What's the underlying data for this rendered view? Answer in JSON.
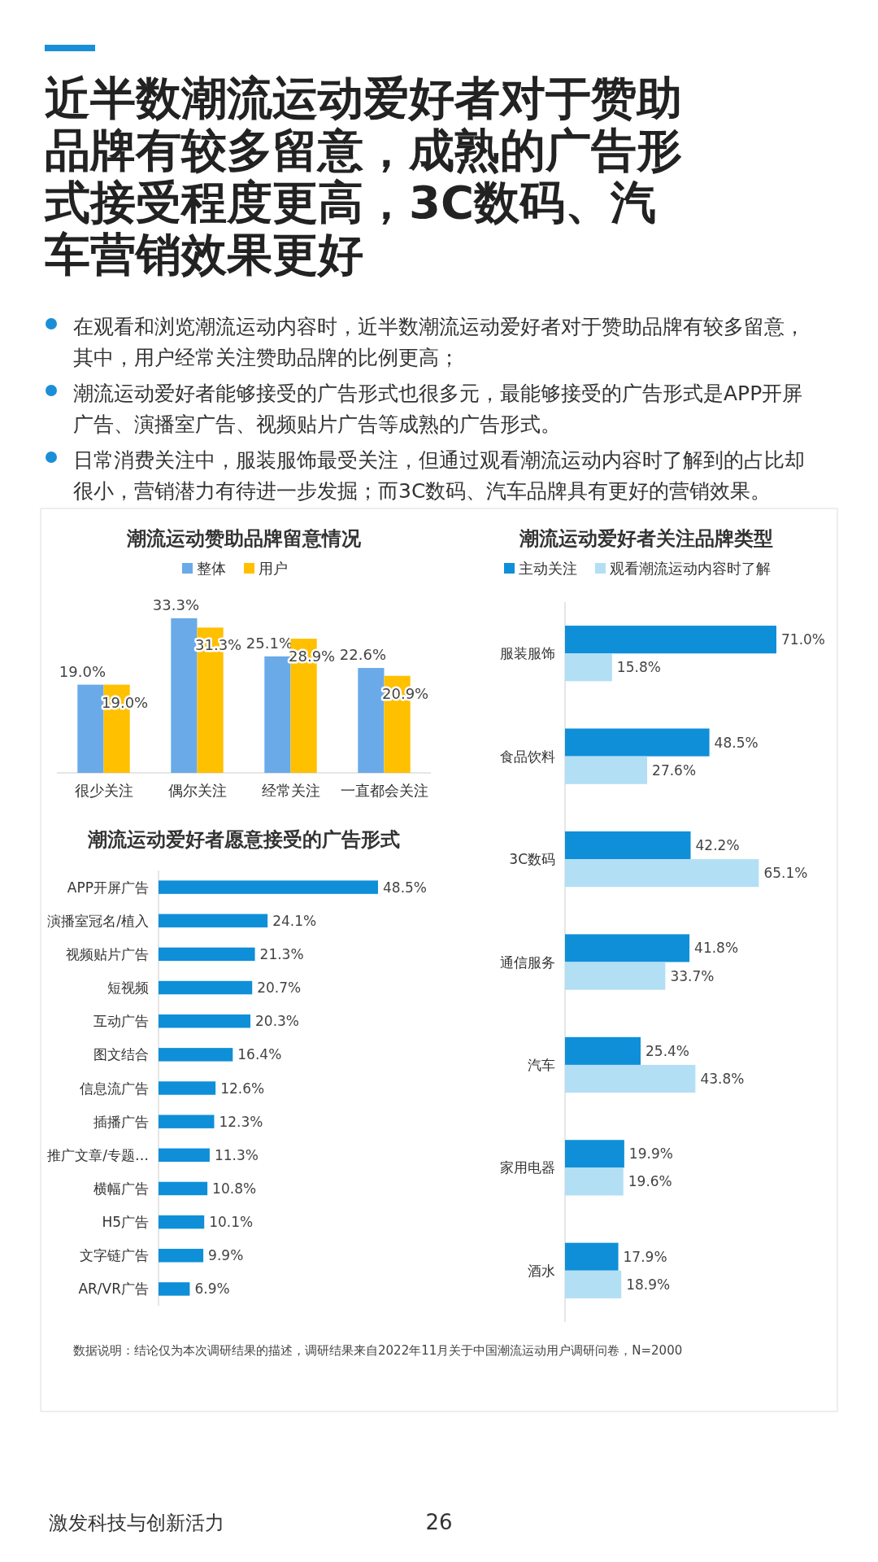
{
  "chart_data": [
    {
      "type": "other",
      "title": "近半数潮流运动爱好者对于赞助品牌有较多留意，成熟的广告形式接受程度更高，3C数码、汽车营销效果更好",
      "annotations": [
        "在观看和浏览潮流运动内容时，近半数潮流运动爱好者对于赞助品牌有较多留意，其中，用户经常关注赞助品牌的比例更高；",
        "潮流运动爱好者能够接受的广告形式也很多元，最能够接受的广告形式是APP开屏广告、演播室广告、视频贴片广告等成熟的广告形式。",
        "日常消费关注中，服装服饰最受关注，但通过观看潮流运动内容时了解到的占比却很小，营销潜力有待进一步发掘；而3C数码、汽车品牌具有更好的营销效果。"
      ]
    },
    {
      "type": "bar",
      "title": "潮流运动赞助品牌留意情况",
      "categories": [
        "很少关注",
        "偶尔关注",
        "经常关注",
        "一直都会关注"
      ],
      "legend": "top",
      "series": [
        {
          "name": "整体",
          "color": "#6aaae8",
          "values": [
            19.0,
            33.3,
            25.1,
            22.6
          ],
          "value_labels": [
            "19.0%",
            "33.3%",
            "25.1%",
            "22.6%"
          ]
        },
        {
          "name": "用户",
          "color": "#ffc000",
          "values": [
            19.0,
            31.3,
            28.9,
            20.9
          ],
          "value_labels": [
            "19.0%",
            "31.3%",
            "28.9%",
            "20.9%"
          ]
        }
      ]
    },
    {
      "type": "bar",
      "orientation": "horizontal",
      "title": "潮流运动爱好者关注品牌类型",
      "categories": [
        "服装服饰",
        "食品饮料",
        "3C数码",
        "通信服务",
        "汽车",
        "家用电器",
        "酒水"
      ],
      "legend": "top",
      "series": [
        {
          "name": "主动关注",
          "color": "#0f8fd8",
          "values": [
            71.0,
            48.5,
            42.2,
            41.8,
            25.4,
            19.9,
            17.9
          ],
          "value_labels": [
            "71.0%",
            "48.5%",
            "42.2%",
            "41.8%",
            "25.4%",
            "19.9%",
            "17.9%"
          ]
        },
        {
          "name": "观看潮流运动内容时了解",
          "color": "#b3dff5",
          "values": [
            15.8,
            27.6,
            65.1,
            33.7,
            43.8,
            19.6,
            18.9
          ],
          "value_labels": [
            "15.8%",
            "27.6%",
            "65.1%",
            "33.7%",
            "43.8%",
            "19.6%",
            "18.9%"
          ]
        }
      ]
    },
    {
      "type": "bar",
      "orientation": "horizontal",
      "title": "潮流运动爱好者愿意接受的广告形式",
      "categories": [
        "APP开屏广告",
        "演播室冠名/植入",
        "视频贴片广告",
        "短视频",
        "互动广告",
        "图文结合",
        "信息流广告",
        "插播广告",
        "推广文章/专题…",
        "横幅广告",
        "H5广告",
        "文字链广告",
        "AR/VR广告"
      ],
      "color": "#0f8fd8",
      "values": [
        48.5,
        24.1,
        21.3,
        20.7,
        20.3,
        16.4,
        12.6,
        12.3,
        11.3,
        10.8,
        10.1,
        9.9,
        6.9
      ],
      "value_labels": [
        "48.5%",
        "24.1%",
        "21.3%",
        "20.7%",
        "20.3%",
        "16.4%",
        "12.6%",
        "12.3%",
        "11.3%",
        "10.8%",
        "10.1%",
        "9.9%",
        "6.9%"
      ]
    },
    {
      "type": "other",
      "annotations": [
        "数据说明：结论仅为本次调研结果的描述，调研结果来自2022年11月关于中国潮流运动用户调研问卷，N=2000",
        "激发科技与创新活力",
        "26"
      ]
    }
  ]
}
